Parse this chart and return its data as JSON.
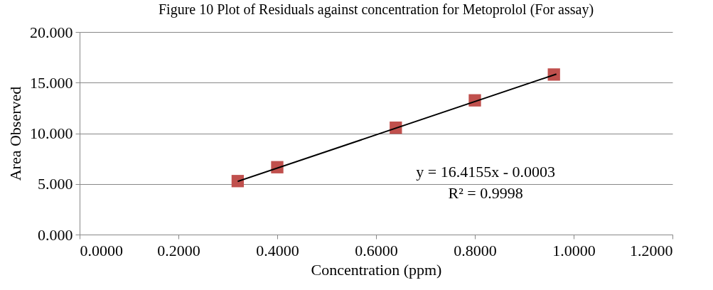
{
  "chart_data": {
    "type": "scatter",
    "title": "Figure 10 Plot of Residuals against concentration for Metoprolol (For assay)",
    "xlabel": "Concentration (ppm)",
    "ylabel": "Area Observed",
    "series": [
      {
        "type": "scatter",
        "color": "#c0504d",
        "marker": "square",
        "x": [
          0.32,
          0.4,
          0.64,
          0.8,
          0.96
        ],
        "values": [
          5.28,
          6.65,
          10.55,
          13.25,
          15.8
        ]
      },
      {
        "type": "line",
        "color": "#000000",
        "line_style": "solid",
        "x": [
          0.32,
          0.965
        ],
        "values": [
          5.25,
          15.84
        ]
      }
    ],
    "xlim": [
      0,
      1.2
    ],
    "xticks": [
      {
        "value": 0,
        "label": "0.0000"
      },
      {
        "value": 0.2,
        "label": "0.2000"
      },
      {
        "value": 0.4,
        "label": "0.4000"
      },
      {
        "value": 0.6,
        "label": "0.6000"
      },
      {
        "value": 0.8,
        "label": "0.8000"
      },
      {
        "value": 1.0,
        "label": "1.0000"
      },
      {
        "value": 1.2,
        "label": "1.2000"
      }
    ],
    "ylim": [
      0,
      20
    ],
    "yticks": [
      {
        "value": 0,
        "label": "0.000"
      },
      {
        "value": 5,
        "label": "5.000"
      },
      {
        "value": 10,
        "label": "10.000"
      },
      {
        "value": 15,
        "label": "15.000"
      },
      {
        "value": 20,
        "label": "20.000"
      }
    ],
    "grid": "y",
    "annotations": [
      "y = 16.4155x - 0.0003",
      "R² = 0.9998"
    ]
  }
}
